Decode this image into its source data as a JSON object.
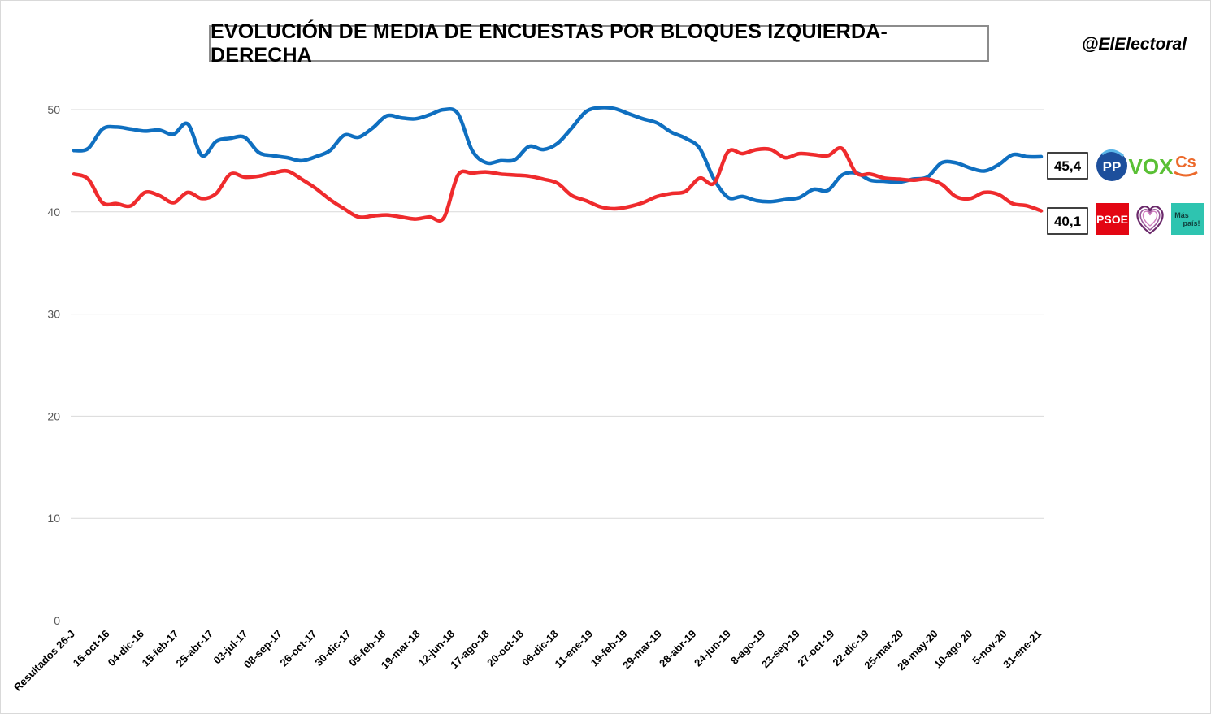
{
  "header": {
    "title": "EVOLUCIÓN DE MEDIA DE ENCUESTAS POR BLOQUES IZQUIERDA-DERECHA",
    "handle": "@ElElectoral"
  },
  "end_labels": {
    "right_bloc": "45,4",
    "left_bloc": "40,1"
  },
  "logos": {
    "right_bloc": [
      "PP",
      "VOX",
      "Cs"
    ],
    "left_bloc": [
      "PSOE",
      "Podemos",
      "Más país!"
    ],
    "pp_text": "PP",
    "vox_text": "VOX",
    "cs_text": "Cs",
    "psoe_text": "PSOE",
    "mas_text_1": "Más",
    "mas_text_2": "país!"
  },
  "colors": {
    "right_bloc": "#0f6fc0",
    "left_bloc": "#ef2b2d",
    "grid": "#d9d9d9",
    "pp_blue": "#1d4f9c",
    "vox_green": "#5ac035",
    "cs_orange": "#ec6a2c",
    "psoe_red": "#e30613",
    "podemos_purple": "#6b2a6b",
    "mas_teal": "#2ec4b0"
  },
  "chart_data": {
    "type": "line",
    "title": "EVOLUCIÓN DE MEDIA DE ENCUESTAS POR BLOQUES IZQUIERDA-DERECHA",
    "xlabel": "",
    "ylabel": "",
    "ylim": [
      0,
      50
    ],
    "yticks": [
      0,
      10,
      20,
      30,
      40,
      50
    ],
    "grid": true,
    "x_tick_labels": [
      "Resultados 26-J",
      "16-oct-16",
      "04-dic-16",
      "15-feb-17",
      "25-abr-17",
      "03-jul-17",
      "08-sep-17",
      "26-oct-17",
      "30-dic-17",
      "05-feb-18",
      "19-mar-18",
      "12-jun-18",
      "17-ago-18",
      "20-oct-18",
      "06-dic-18",
      "11-ene-19",
      "19-feb-19",
      "29-mar-19",
      "28-abr-19",
      "24-jun-19",
      "8-ago-19",
      "23-sep-19",
      "27-oct-19",
      "22-dic-19",
      "25-mar-20",
      "29-may-20",
      "10-ago 20",
      "5-nov-20",
      "31-ene-21"
    ],
    "series": [
      {
        "key": "right_bloc",
        "values": [
          46.0,
          46.2,
          48.1,
          48.3,
          48.1,
          47.9,
          48.0,
          47.6,
          48.6,
          45.5,
          46.9,
          47.2,
          47.3,
          45.8,
          45.5,
          45.3,
          45.0,
          45.4,
          46.0,
          47.5,
          47.3,
          48.2,
          49.4,
          49.2,
          49.1,
          49.5,
          50.0,
          49.6,
          46.0,
          44.8,
          45.0,
          45.1,
          46.4,
          46.1,
          46.7,
          48.2,
          49.8,
          50.2,
          50.1,
          49.6,
          49.1,
          48.7,
          47.8,
          47.2,
          46.2,
          43.2,
          41.4,
          41.5,
          41.1,
          41.0,
          41.2,
          41.4,
          42.2,
          42.1,
          43.6,
          43.8,
          43.1,
          43.0,
          42.9,
          43.2,
          43.4,
          44.8,
          44.8,
          44.3,
          44.0,
          44.6,
          45.6,
          45.4,
          45.4
        ]
      },
      {
        "key": "left_bloc",
        "values": [
          43.7,
          43.2,
          40.9,
          40.8,
          40.6,
          41.9,
          41.6,
          40.9,
          41.9,
          41.3,
          41.8,
          43.7,
          43.4,
          43.5,
          43.8,
          44.0,
          43.2,
          42.3,
          41.2,
          40.3,
          39.5,
          39.6,
          39.7,
          39.5,
          39.3,
          39.5,
          39.4,
          43.6,
          43.8,
          43.9,
          43.7,
          43.6,
          43.5,
          43.2,
          42.8,
          41.6,
          41.1,
          40.5,
          40.3,
          40.5,
          40.9,
          41.5,
          41.8,
          42.0,
          43.3,
          42.8,
          45.9,
          45.7,
          46.1,
          46.1,
          45.3,
          45.7,
          45.6,
          45.5,
          46.2,
          43.8,
          43.7,
          43.3,
          43.2,
          43.1,
          43.2,
          42.7,
          41.5,
          41.3,
          41.9,
          41.7,
          40.8,
          40.6,
          40.1
        ]
      }
    ]
  }
}
